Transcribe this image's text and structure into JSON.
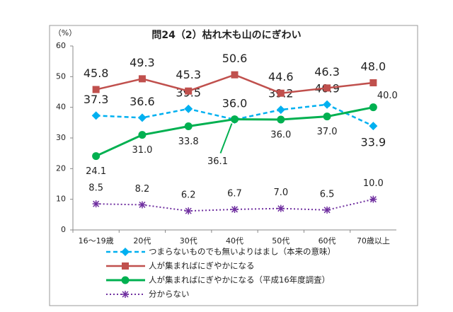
{
  "chart_data": {
    "type": "line",
    "title": "問24（2）枯れ木も山のにぎわい",
    "y_unit": "（%）",
    "categories": [
      "16～19歳",
      "20代",
      "30代",
      "40代",
      "50代",
      "60代",
      "70歳以上"
    ],
    "ylim": [
      0,
      60
    ],
    "yticks": [
      0,
      10,
      20,
      30,
      40,
      50,
      60
    ],
    "series": [
      {
        "name": "つまらないものでも無いよりはまし（本来の意味）",
        "color": "#00b0f0",
        "values": [
          37.3,
          36.6,
          39.5,
          36.0,
          39.2,
          40.9,
          33.9
        ],
        "value_labels": [
          "37.3",
          "36.6",
          "39.5",
          "36.0",
          "39.2",
          "40.9",
          "33.9"
        ]
      },
      {
        "name": "人が集まればにぎやかになる",
        "color": "#c0504d",
        "values": [
          45.8,
          49.3,
          45.3,
          50.6,
          44.6,
          46.3,
          48.0
        ],
        "value_labels": [
          "45.8",
          "49.3",
          "45.3",
          "50.6",
          "44.6",
          "46.3",
          "48.0"
        ]
      },
      {
        "name": "人が集まればにぎやかになる（平成16年度調査）",
        "color": "#00b050",
        "values": [
          24.1,
          31.0,
          33.8,
          36.1,
          36.0,
          37.0,
          40.0
        ],
        "value_labels": [
          "24.1",
          "31.0",
          "33.8",
          "36.1",
          "36.0",
          "37.0",
          "40.0"
        ]
      },
      {
        "name": "分からない",
        "color": "#7030a0",
        "values": [
          8.5,
          8.2,
          6.2,
          6.7,
          7.0,
          6.5,
          10.0
        ],
        "value_labels": [
          "8.5",
          "8.2",
          "6.2",
          "6.7",
          "7.0",
          "6.5",
          "10.0"
        ]
      }
    ]
  }
}
